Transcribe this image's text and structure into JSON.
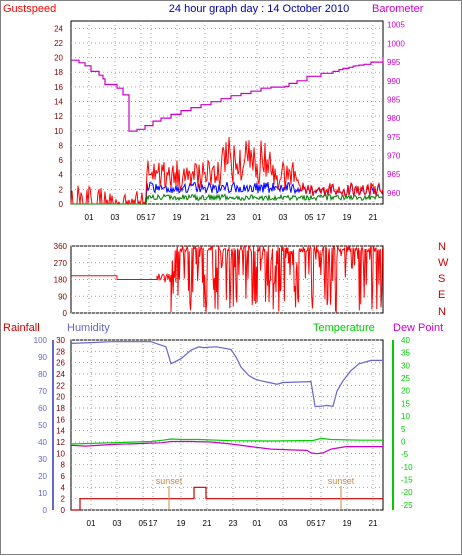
{
  "title": "24 hour graph day : 14 October 2010",
  "colors": {
    "gust": "#ff0000",
    "wind": "#0000ff",
    "gust_avg": "#008000",
    "baro": "#cc00cc",
    "rain": "#cc0000",
    "hum": "#6666cc",
    "temp": "#00cc00",
    "dew": "#cc00cc",
    "sunset": "#cc8844",
    "grid": "#a0a0a0",
    "axis_text": "#800000"
  },
  "chart_data": [
    {
      "type": "line",
      "name": "wind-barometer",
      "left_label": "Gustspeed",
      "right_label": "Barometer",
      "left_ticks": [
        "0",
        "2",
        "4",
        "6",
        "8",
        "10",
        "12",
        "14",
        "16",
        "18",
        "20",
        "22",
        "24"
      ],
      "right_ticks": [
        "960",
        "965",
        "970",
        "975",
        "980",
        "985",
        "990",
        "995",
        "1000",
        "1005"
      ],
      "ylim_left": [
        0,
        25
      ],
      "ylim_right": [
        957,
        1006
      ],
      "x_ticks": [
        "01",
        "03",
        "05",
        "17",
        "19",
        "21",
        "23",
        "01",
        "03",
        "05",
        "17",
        "19",
        "21"
      ],
      "grid": true,
      "barometer": {
        "x": [
          0,
          8,
          14,
          20,
          28,
          32,
          34,
          46,
          52,
          58,
          66,
          74,
          82,
          90,
          100,
          110,
          120,
          130,
          140,
          150,
          160,
          170,
          180,
          190,
          200,
          214,
          218,
          226,
          236,
          250,
          262,
          268,
          272,
          278,
          282,
          284,
          288,
          293,
          300,
          312
        ],
        "y": [
          995.5,
          994.8,
          994,
          992.5,
          991.5,
          990.5,
          989,
          988,
          986.2,
          976.5,
          977,
          978,
          979.2,
          980,
          981,
          982,
          982.8,
          983.6,
          984.4,
          985.2,
          986,
          986.6,
          987.2,
          988,
          988.3,
          988.5,
          989.3,
          990,
          991.2,
          992,
          992.5,
          993,
          993.3,
          993.6,
          993.9,
          994,
          994.2,
          994.4,
          995,
          996.3
        ]
      }
    },
    {
      "type": "line",
      "name": "wind-direction",
      "left_ticks": [
        "0",
        "90",
        "180",
        "270",
        "360"
      ],
      "right_ticks": [
        "N",
        "W",
        "S",
        "E",
        "N"
      ],
      "ylim": [
        0,
        360
      ],
      "grid": true
    },
    {
      "type": "line",
      "name": "rain-humidity-temperature",
      "labels": {
        "rainfall": "Rainfall",
        "humidity": "Humidity",
        "temperature": "Temperature",
        "dew_point": "Dew Point"
      },
      "humidity_ticks": [
        "0",
        "10",
        "20",
        "30",
        "40",
        "50",
        "60",
        "70",
        "80",
        "90",
        "100"
      ],
      "rain_ticks": [
        "0",
        "2",
        "4",
        "6",
        "8",
        "10",
        "12",
        "14",
        "16",
        "18",
        "20",
        "22",
        "24",
        "26",
        "28",
        "30"
      ],
      "temp_ticks": [
        "-25",
        "-20",
        "-15",
        "-10",
        "-5",
        "0",
        "5",
        "10",
        "15",
        "20",
        "25",
        "30",
        "35",
        "40"
      ],
      "x_ticks": [
        "01",
        "03",
        "05",
        "17",
        "19",
        "21",
        "23",
        "01",
        "03",
        "05",
        "17",
        "19",
        "21"
      ],
      "sunset_label": "sunset",
      "sunset_x": [
        98,
        270
      ],
      "grid": true,
      "humidity": {
        "x": [
          0,
          20,
          40,
          60,
          80,
          95,
          100,
          110,
          120,
          128,
          132,
          145,
          160,
          165,
          170,
          178,
          184,
          190,
          198,
          206,
          212,
          240,
          244,
          250,
          256,
          262,
          266,
          272,
          280,
          288,
          300,
          312
        ],
        "y": [
          98,
          98.5,
          99,
          99,
          99,
          96,
          86,
          89,
          94,
          96,
          95.5,
          96,
          94.5,
          90,
          84,
          79,
          77,
          76,
          75,
          74,
          75,
          75.5,
          61,
          61,
          61.5,
          61,
          70,
          76,
          82,
          86,
          88,
          88
        ]
      },
      "temperature": {
        "x": [
          0,
          40,
          80,
          92,
          100,
          112,
          128,
          160,
          200,
          242,
          250,
          260,
          290,
          312
        ],
        "y": [
          -1,
          -0.5,
          0,
          0.5,
          1,
          0.8,
          0.8,
          0.3,
          0.2,
          0.4,
          1.2,
          0.8,
          0.5,
          0.5
        ]
      },
      "dew_point": {
        "x": [
          0,
          15,
          40,
          70,
          90,
          100,
          120,
          140,
          160,
          180,
          200,
          220,
          236,
          240,
          246,
          252,
          260,
          275,
          300,
          312
        ],
        "y": [
          -1.5,
          -1.8,
          -1.2,
          -0.8,
          -0.5,
          0,
          0,
          -0.2,
          -1,
          -2,
          -3,
          -3.3,
          -3.5,
          -4.5,
          -4.8,
          -4.5,
          -3,
          -2,
          -2,
          -2
        ]
      },
      "rainfall": {
        "x": [
          0,
          8,
          9,
          100,
          101,
          104,
          105,
          122,
          123,
          134,
          135,
          140,
          141,
          312
        ],
        "y": [
          0,
          0,
          2,
          2,
          2,
          2,
          2,
          2,
          4,
          4,
          2,
          2,
          2,
          2
        ]
      }
    }
  ]
}
